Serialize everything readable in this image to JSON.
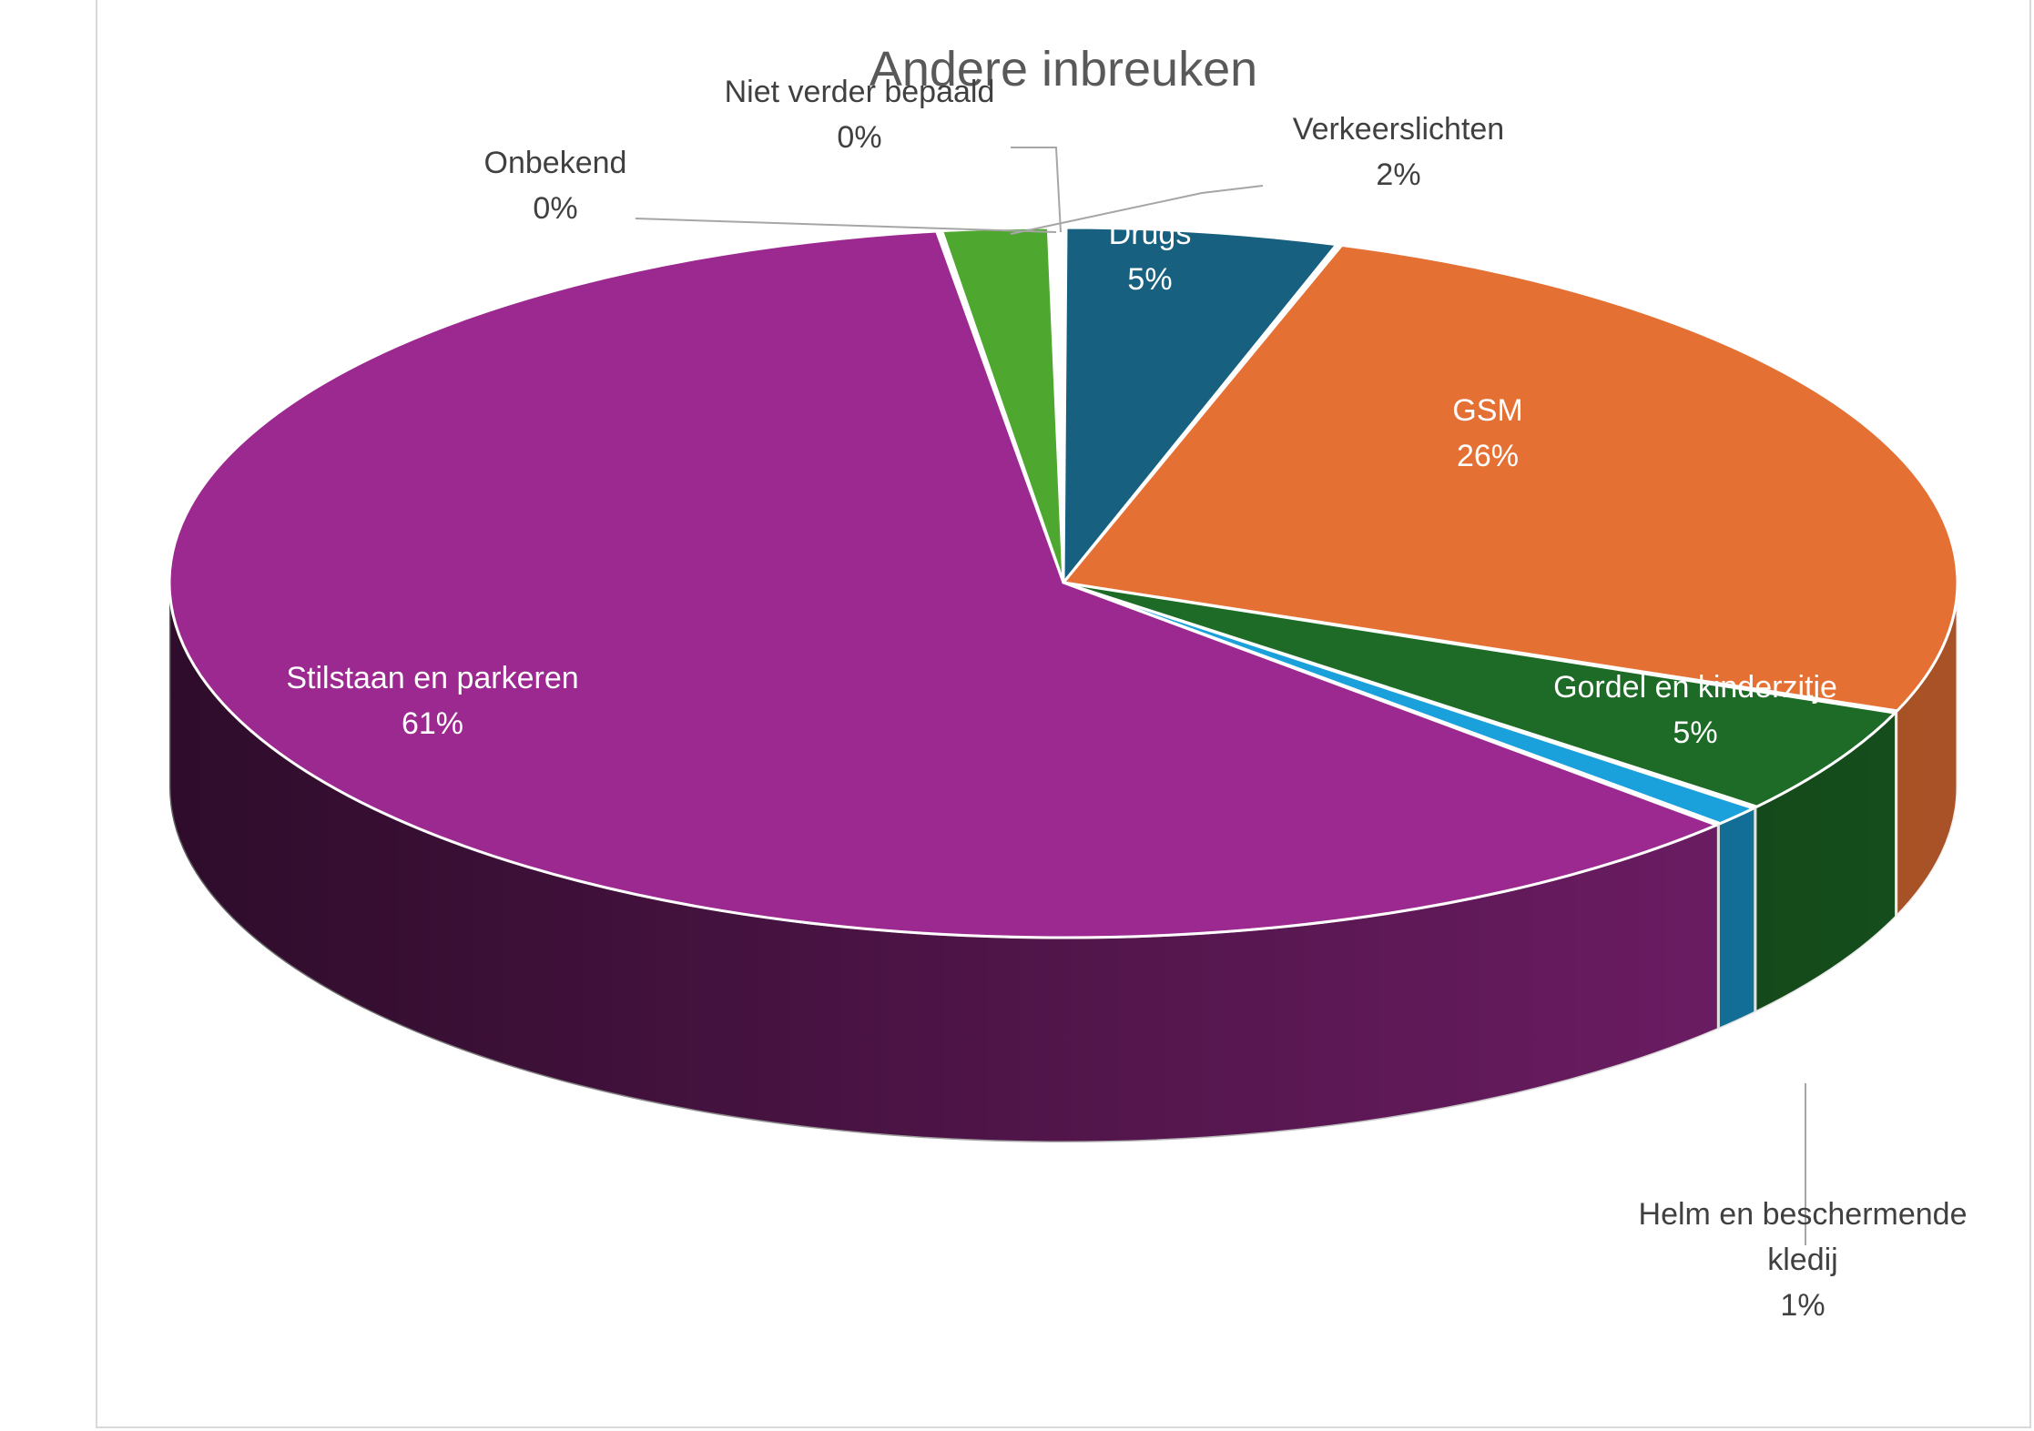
{
  "chart_data": {
    "type": "pie",
    "title": "Andere inbreuken",
    "three_d": true,
    "legend": "none",
    "slices": [
      {
        "name": "Drugs",
        "value": 5,
        "label": "5%",
        "color": "#17607f"
      },
      {
        "name": "GSM",
        "value": 26,
        "label": "26%",
        "color": "#e57034"
      },
      {
        "name": "Gordel en kinderzitje",
        "value": 5,
        "label": "5%",
        "color": "#1d6b26"
      },
      {
        "name": "Helm en beschermende kledij",
        "value": 1,
        "label": "1%",
        "color": "#1aa0da"
      },
      {
        "name": "Stilstaan en parkeren",
        "value": 61,
        "label": "61%",
        "color": "#9c298f"
      },
      {
        "name": "Verkeerslichten",
        "value": 2,
        "label": "2%",
        "color": "#4ea72e"
      },
      {
        "name": "Onbekend",
        "value": 0,
        "label": "0%",
        "color": "#aa3a3a"
      },
      {
        "name": "Niet verder bepaald",
        "value": 0,
        "label": "0%",
        "color": "#8a8a2a"
      }
    ]
  }
}
